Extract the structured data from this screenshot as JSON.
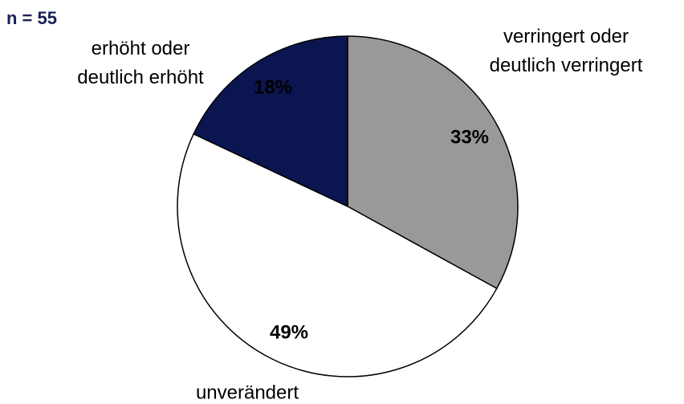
{
  "chart_data": {
    "type": "pie",
    "title": "n = 55",
    "categories": [
      "verringert oder\ndeutlich verringert",
      "unverändert",
      "erhöht oder\ndeutlich erhöht"
    ],
    "values": [
      33,
      49,
      18
    ],
    "value_labels": [
      "33%",
      "49%",
      "18%"
    ],
    "colors": [
      "#999999",
      "#ffffff",
      "#0b1650"
    ]
  }
}
